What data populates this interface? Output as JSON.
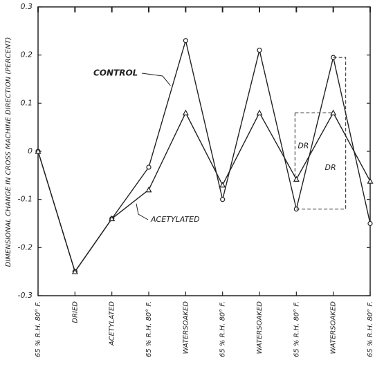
{
  "chart_data": {
    "type": "line",
    "ylabel": "DIMENSIONAL CHANGE IN CROSS MACHINE DIRECTION (PERCENT)",
    "categories": [
      "65 % R.H. 80° F.",
      "DRIED",
      "ACETYLATED",
      "65 % R.H. 80° F.",
      "WATERSOAKED",
      "65 % R.H. 80° F.",
      "WATERSOAKED",
      "65 % R.H. 80° F.",
      "WATERSOAKED",
      "65 % R.H. 80° F."
    ],
    "series": [
      {
        "name": "CONTROL",
        "color": "#222222",
        "marker": "circle",
        "values": [
          0,
          -0.25,
          -0.14,
          -0.033,
          0.23,
          -0.1,
          0.21,
          -0.12,
          0.195,
          -0.15
        ]
      },
      {
        "name": "ACETYLATED",
        "color": "#222222",
        "marker": "triangle",
        "values": [
          0,
          -0.25,
          -0.14,
          -0.08,
          0.08,
          -0.07,
          0.08,
          -0.058,
          0.08,
          -0.062
        ]
      }
    ],
    "annotations": [
      "DR",
      "DR"
    ],
    "ylim": [
      -0.3,
      0.3
    ],
    "yticks": [
      0.3,
      0.2,
      0.1,
      0,
      -0.1,
      -0.2,
      -0.3
    ]
  }
}
